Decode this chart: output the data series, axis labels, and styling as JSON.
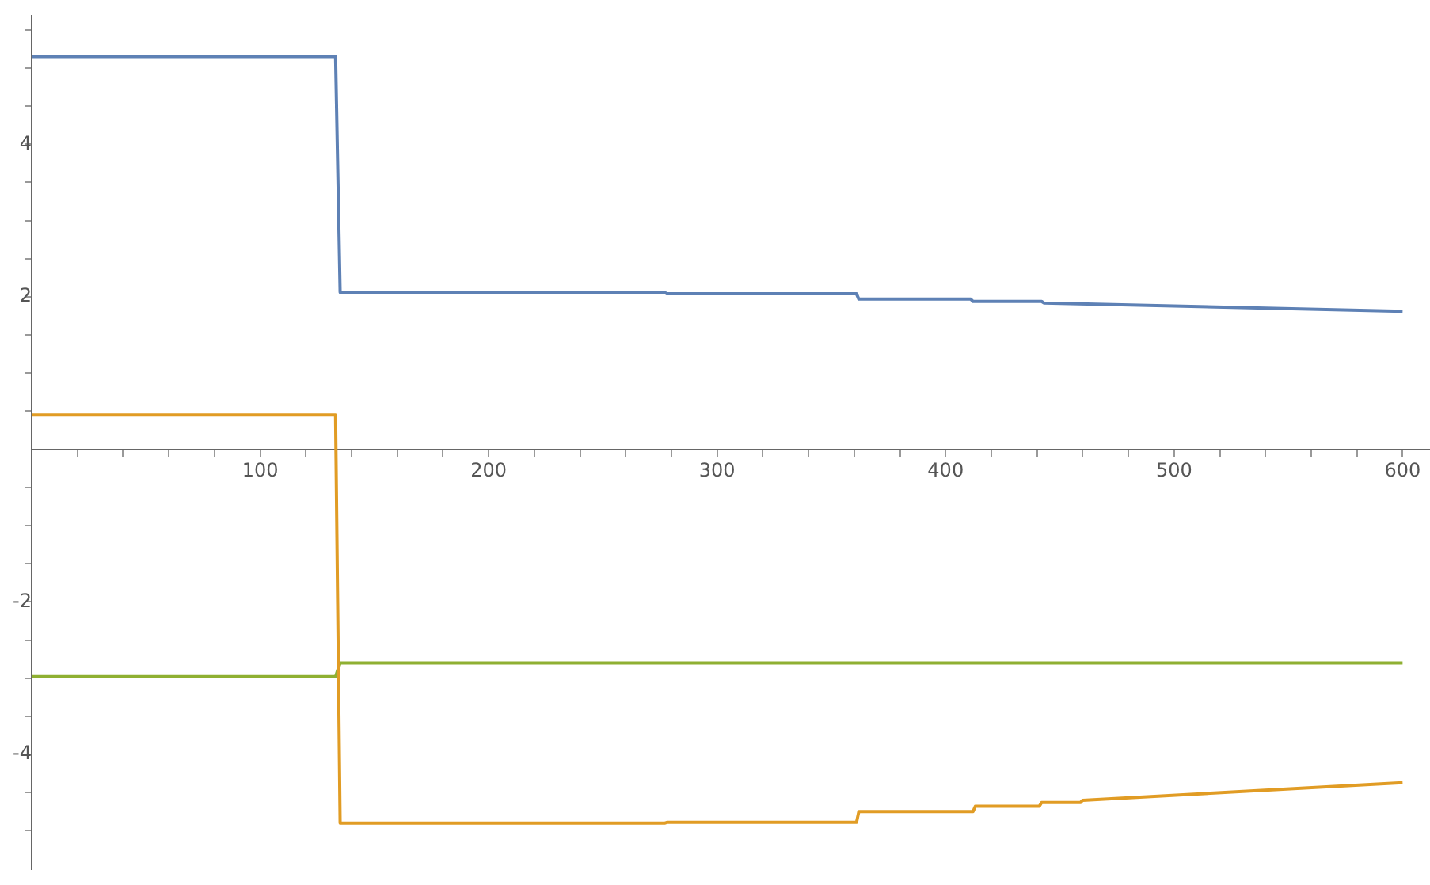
{
  "chart_data": {
    "type": "line",
    "xlim": [
      0,
      612
    ],
    "ylim": [
      -5.5,
      5.68
    ],
    "xticks": [
      {
        "value": 20,
        "label": null
      },
      {
        "value": 40,
        "label": null
      },
      {
        "value": 60,
        "label": null
      },
      {
        "value": 80,
        "label": null
      },
      100,
      {
        "value": 120,
        "label": null
      },
      {
        "value": 140,
        "label": null
      },
      {
        "value": 160,
        "label": null
      },
      {
        "value": 180,
        "label": null
      },
      200,
      {
        "value": 220,
        "label": null
      },
      {
        "value": 240,
        "label": null
      },
      {
        "value": 260,
        "label": null
      },
      {
        "value": 280,
        "label": null
      },
      300,
      {
        "value": 320,
        "label": null
      },
      {
        "value": 340,
        "label": null
      },
      {
        "value": 360,
        "label": null
      },
      {
        "value": 380,
        "label": null
      },
      400,
      {
        "value": 420,
        "label": null
      },
      {
        "value": 440,
        "label": null
      },
      {
        "value": 460,
        "label": null
      },
      {
        "value": 480,
        "label": null
      },
      500,
      {
        "value": 520,
        "label": null
      },
      {
        "value": 540,
        "label": null
      },
      {
        "value": 560,
        "label": null
      },
      {
        "value": 580,
        "label": null
      },
      600
    ],
    "yticks": [
      {
        "value": -5,
        "label": null
      },
      {
        "value": -4.5,
        "label": null
      },
      -4,
      {
        "value": -3.5,
        "label": null
      },
      {
        "value": -3,
        "label": null
      },
      {
        "value": -2.5,
        "label": null
      },
      -2,
      {
        "value": -1.5,
        "label": null
      },
      {
        "value": -1,
        "label": null
      },
      {
        "value": -0.5,
        "label": null
      },
      {
        "value": 0.5,
        "label": null
      },
      {
        "value": 1,
        "label": null
      },
      {
        "value": 1.5,
        "label": null
      },
      2,
      {
        "value": 2.5,
        "label": null
      },
      {
        "value": 3,
        "label": null
      },
      {
        "value": 3.5,
        "label": null
      },
      4,
      {
        "value": 4.5,
        "label": null
      },
      {
        "value": 5,
        "label": null
      },
      {
        "value": 5.5,
        "label": null
      }
    ],
    "grid": false,
    "legend": false,
    "marker": "none",
    "line_style": "solid",
    "series": [
      {
        "color": "#5e81b5",
        "x": [
          0,
          133,
          135,
          277,
          278,
          361,
          362,
          411,
          412,
          442,
          443,
          600
        ],
        "values": [
          5.15,
          5.15,
          2.06,
          2.06,
          2.04,
          2.04,
          1.97,
          1.97,
          1.94,
          1.94,
          1.92,
          1.81
        ]
      },
      {
        "color": "#e19c24",
        "x": [
          0,
          133,
          135,
          277,
          278,
          361,
          362,
          412,
          413,
          441,
          442,
          459,
          460,
          600
        ],
        "values": [
          0.45,
          0.45,
          -4.9,
          -4.9,
          -4.89,
          -4.89,
          -4.75,
          -4.75,
          -4.68,
          -4.68,
          -4.63,
          -4.63,
          -4.6,
          -4.37
        ]
      },
      {
        "color": "#8fb032",
        "x": [
          0,
          133,
          135,
          600
        ],
        "values": [
          -2.98,
          -2.98,
          -2.8,
          -2.8
        ]
      }
    ]
  }
}
